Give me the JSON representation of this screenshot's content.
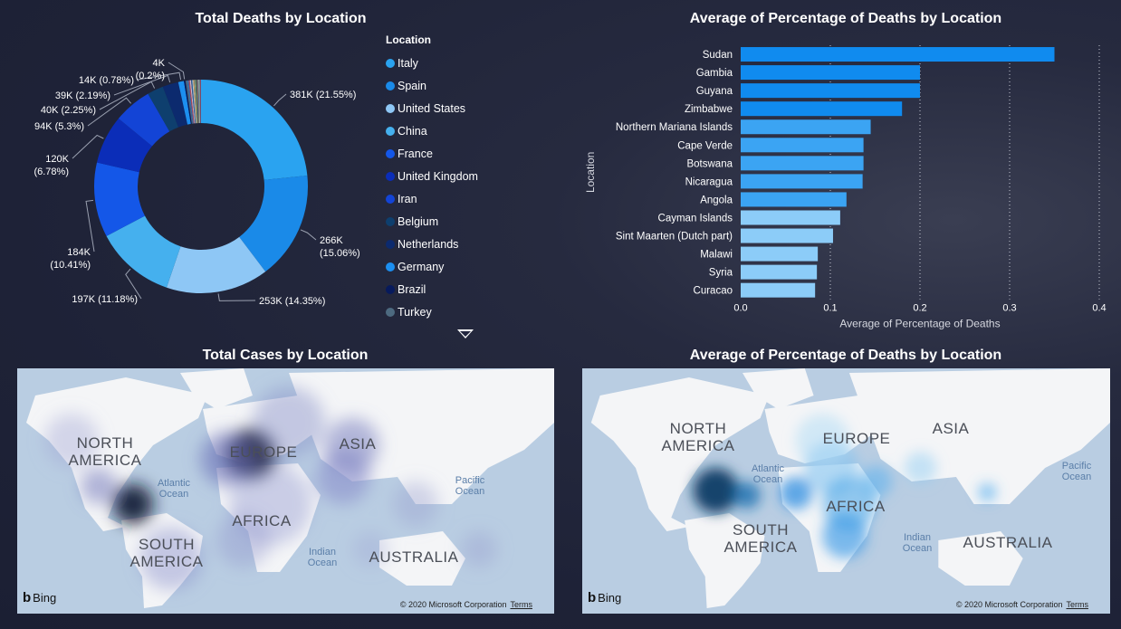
{
  "titles": {
    "donut": "Total Deaths by Location",
    "bar": "Average of Percentage of Deaths by Location",
    "map_cases": "Total Cases by Location",
    "map_deaths": "Average of Percentage of Deaths by Location"
  },
  "legend": {
    "title": "Location",
    "items": [
      {
        "label": "Italy",
        "color": "#2aa3f0"
      },
      {
        "label": "Spain",
        "color": "#1a8ae8"
      },
      {
        "label": "United States",
        "color": "#8ec7f5"
      },
      {
        "label": "China",
        "color": "#45b0ee"
      },
      {
        "label": "France",
        "color": "#1457e8"
      },
      {
        "label": "United Kingdom",
        "color": "#0b2db8"
      },
      {
        "label": "Iran",
        "color": "#1344d6"
      },
      {
        "label": "Belgium",
        "color": "#0e3f6e"
      },
      {
        "label": "Netherlands",
        "color": "#0c2a6e"
      },
      {
        "label": "Germany",
        "color": "#1c8ff0"
      },
      {
        "label": "Brazil",
        "color": "#071a5c"
      },
      {
        "label": "Turkey",
        "color": "#4d6a80"
      }
    ]
  },
  "chart_data": [
    {
      "type": "pie",
      "title": "Total Deaths by Location",
      "legend_title": "Location",
      "slices": [
        {
          "label": "Italy",
          "value": 381000,
          "display": "381K (21.55%)",
          "color": "#2aa3f0"
        },
        {
          "label": "Spain",
          "value": 266000,
          "display": "266K (15.06%)",
          "color": "#1a8ae8"
        },
        {
          "label": "United States",
          "value": 253000,
          "display": "253K (14.35%)",
          "color": "#8ec7f5"
        },
        {
          "label": "China",
          "value": 197000,
          "display": "197K (11.18%)",
          "color": "#45b0ee"
        },
        {
          "label": "France",
          "value": 184000,
          "display": "184K (10.41%)",
          "color": "#1457e8"
        },
        {
          "label": "United Kingdom",
          "value": 120000,
          "display": "120K (6.78%)",
          "color": "#0b2db8"
        },
        {
          "label": "Iran",
          "value": 94000,
          "display": "94K (5.3%)",
          "color": "#1344d6"
        },
        {
          "label": "Belgium",
          "value": 40000,
          "display": "40K (2.25%)",
          "color": "#0e3f6e"
        },
        {
          "label": "Netherlands",
          "value": 39000,
          "display": "39K (2.19%)",
          "color": "#0c2a6e"
        },
        {
          "label": "Germany",
          "value": 14000,
          "display": "14K (0.78%)",
          "color": "#1c8ff0"
        },
        {
          "label": "Brazil",
          "value": 4000,
          "display": "4K (0.2%)",
          "color": "#071a5c"
        },
        {
          "label": "Turkey",
          "value": 4000,
          "display": "",
          "color": "#4d6a80"
        },
        {
          "label": "",
          "value": 3500,
          "display": "",
          "color": "#3a6fb0"
        },
        {
          "label": "",
          "value": 3000,
          "display": "",
          "color": "#b04a5a"
        },
        {
          "label": "",
          "value": 3000,
          "display": "",
          "color": "#c8b4c8"
        },
        {
          "label": "",
          "value": 2800,
          "display": "",
          "color": "#2c5d9a"
        },
        {
          "label": "",
          "value": 2600,
          "display": "",
          "color": "#a8c0d8"
        },
        {
          "label": "",
          "value": 2500,
          "display": "",
          "color": "#d0a040"
        },
        {
          "label": "",
          "value": 2400,
          "display": "",
          "color": "#6a8aa8"
        },
        {
          "label": "",
          "value": 2300,
          "display": "",
          "color": "#8aa048"
        },
        {
          "label": "",
          "value": 2200,
          "display": "",
          "color": "#1e3a70"
        },
        {
          "label": "",
          "value": 2100,
          "display": "",
          "color": "#c09070"
        },
        {
          "label": "",
          "value": 2000,
          "display": "",
          "color": "#5080b0"
        },
        {
          "label": "",
          "value": 1900,
          "display": "",
          "color": "#d8d8a0"
        },
        {
          "label": "",
          "value": 1800,
          "display": "",
          "color": "#304878"
        },
        {
          "label": "",
          "value": 1700,
          "display": "",
          "color": "#a05070"
        }
      ]
    },
    {
      "type": "bar",
      "orientation": "horizontal",
      "title": "Average of Percentage of Deaths by Location",
      "xlabel": "Average of Percentage of Deaths",
      "ylabel": "Location",
      "xlim": [
        0,
        0.4
      ],
      "xticks": [
        "0.0",
        "0.1",
        "0.2",
        "0.3",
        "0.4"
      ],
      "grid": true,
      "categories": [
        "Sudan",
        "Gambia",
        "Guyana",
        "Zimbabwe",
        "Northern Mariana Islands",
        "Cape Verde",
        "Botswana",
        "Nicaragua",
        "Angola",
        "Cayman Islands",
        "Sint Maarten (Dutch part)",
        "Malawi",
        "Syria",
        "Curacao"
      ],
      "values": [
        0.35,
        0.2,
        0.2,
        0.18,
        0.145,
        0.137,
        0.137,
        0.136,
        0.118,
        0.111,
        0.103,
        0.086,
        0.085,
        0.083
      ],
      "colors": [
        "#108bef",
        "#108bef",
        "#108bef",
        "#108bef",
        "#3ba4f3",
        "#3ba4f3",
        "#3ba4f3",
        "#3ba4f3",
        "#3ba4f3",
        "#8cccf8",
        "#8cccf8",
        "#8cccf8",
        "#8cccf8",
        "#8cccf8"
      ]
    }
  ],
  "maps": {
    "labels": {
      "north_america": [
        "NORTH",
        "AMERICA"
      ],
      "south_america": [
        "SOUTH",
        "AMERICA"
      ],
      "europe": "EUROPE",
      "asia": "ASIA",
      "africa": "AFRICA",
      "australia": "AUSTRALIA",
      "atlantic": [
        "Atlantic",
        "Ocean"
      ],
      "pacific": [
        "Pacific",
        "Ocean"
      ],
      "indian": [
        "Indian",
        "Ocean"
      ]
    },
    "bing": "Bing",
    "copyright": "© 2020 Microsoft Corporation",
    "terms": "Terms"
  }
}
